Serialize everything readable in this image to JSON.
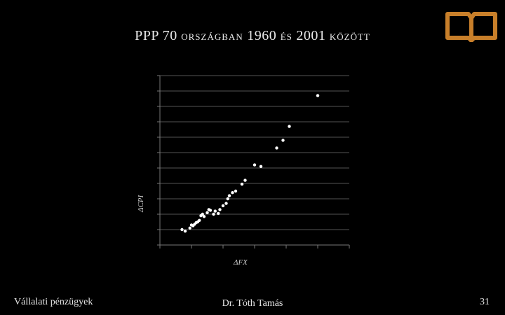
{
  "slide": {
    "title_main": "PPP 70",
    "title_word1": "ORSZÁGBAN",
    "title_year1": "1960",
    "title_word2": "ÉS",
    "title_year2": "2001",
    "title_word3": "KÖZÖTT",
    "footer_left": "Vállalati pénzügyek",
    "footer_center": "Dr. Tóth Tamás",
    "page_number": "31"
  },
  "icon": {
    "name": "open-book-icon",
    "color": "#c87f2a"
  },
  "chart_data": {
    "type": "scatter",
    "title": "",
    "xlabel": "ΔFX",
    "ylabel": "ΔCPI",
    "grid": true,
    "ylim": [
      0,
      11
    ],
    "xlim": [
      0,
      6
    ],
    "annotation": "",
    "points": [
      [
        0.7,
        1.0
      ],
      [
        0.8,
        0.9
      ],
      [
        0.95,
        1.1
      ],
      [
        1.0,
        1.3
      ],
      [
        1.05,
        1.25
      ],
      [
        1.1,
        1.35
      ],
      [
        1.15,
        1.45
      ],
      [
        1.2,
        1.5
      ],
      [
        1.25,
        1.6
      ],
      [
        1.3,
        1.9
      ],
      [
        1.35,
        2.0
      ],
      [
        1.4,
        1.85
      ],
      [
        1.5,
        2.1
      ],
      [
        1.55,
        2.3
      ],
      [
        1.6,
        2.25
      ],
      [
        1.7,
        2.0
      ],
      [
        1.75,
        2.2
      ],
      [
        1.85,
        2.05
      ],
      [
        1.9,
        2.3
      ],
      [
        2.0,
        2.55
      ],
      [
        2.1,
        2.7
      ],
      [
        2.15,
        3.0
      ],
      [
        2.2,
        3.2
      ],
      [
        2.3,
        3.4
      ],
      [
        2.4,
        3.5
      ],
      [
        2.6,
        3.95
      ],
      [
        2.7,
        4.2
      ],
      [
        3.0,
        5.2
      ],
      [
        3.2,
        5.1
      ],
      [
        3.7,
        6.3
      ],
      [
        3.9,
        6.8
      ],
      [
        4.1,
        7.7
      ],
      [
        5.0,
        9.7
      ]
    ]
  }
}
